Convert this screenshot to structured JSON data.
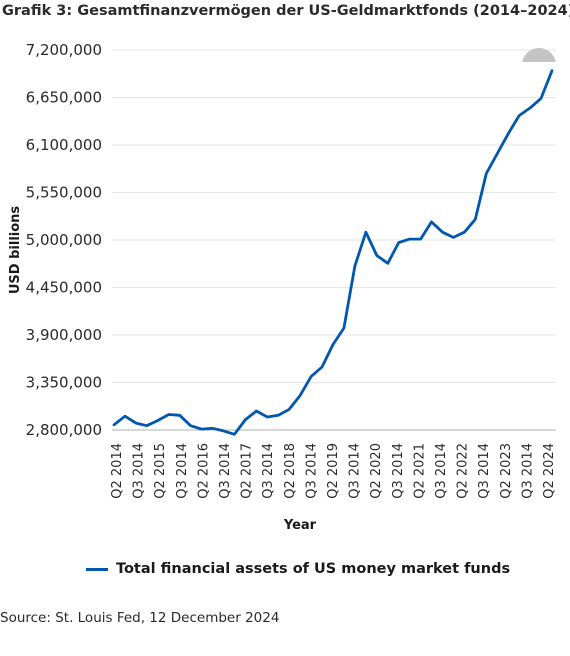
{
  "title": "Grafik 3: Gesamtfinanzvermögen der US-Geldmarktfonds (2014–2024)",
  "source": "Source: St. Louis Fed, 12 December 2024",
  "colors": {
    "line": "#0057b0",
    "grid": "#e6e6e6",
    "badge": "#c4c4c4"
  },
  "chart_data": {
    "type": "line",
    "ylabel": "USD billions",
    "xlabel": "Year",
    "ylim": [
      2800000,
      7200000
    ],
    "yticks": [
      2800000,
      3350000,
      3900000,
      4450000,
      5000000,
      5550000,
      6100000,
      6650000,
      7200000
    ],
    "ytick_labels": [
      "2,800,000",
      "3,350,000",
      "3,900,000",
      "4,450,000",
      "5,000,000",
      "5,550,000",
      "6,100,000",
      "6,650,000",
      "7,200,000"
    ],
    "xtick_labels": [
      "Q2 2014",
      "Q3 2014",
      "Q2 2015",
      "Q3 2014",
      "Q2 2016",
      "Q3 2014",
      "Q2 2017",
      "Q3 2014",
      "Q2 2018",
      "Q3 2014",
      "Q2 2019",
      "Q3 2014",
      "Q2 2020",
      "Q3 2014",
      "Q2 2021",
      "Q3 2014",
      "Q2 2022",
      "Q3 2014",
      "Q2 2023",
      "Q3 2014",
      "Q2 2024"
    ],
    "grid": true,
    "legend_position": "bottom",
    "series": [
      {
        "name": "Total financial assets of US money market funds",
        "values": [
          2860000,
          2960000,
          2880000,
          2850000,
          2910000,
          2980000,
          2970000,
          2850000,
          2810000,
          2820000,
          2790000,
          2750000,
          2920000,
          3020000,
          2950000,
          2970000,
          3040000,
          3200000,
          3420000,
          3530000,
          3790000,
          3980000,
          4700000,
          5090000,
          4820000,
          4730000,
          4970000,
          5010000,
          5010000,
          5210000,
          5090000,
          5030000,
          5090000,
          5240000,
          5770000,
          6000000,
          6230000,
          6440000,
          6530000,
          6640000,
          6960000
        ]
      }
    ]
  }
}
